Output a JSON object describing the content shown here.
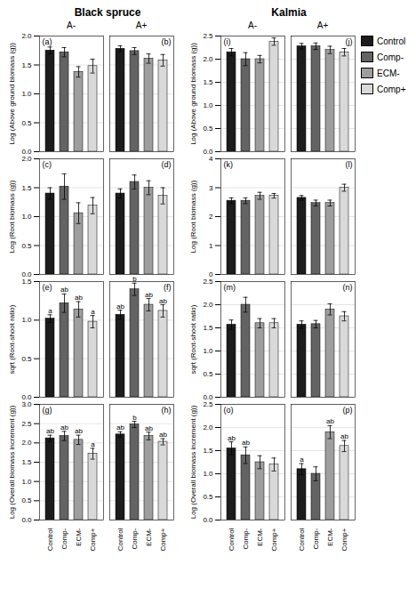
{
  "chart_data": [
    {
      "type": "bar",
      "title": "Black spruce",
      "subtitle": "A-",
      "y_label": "Log (Above ground biomass (g))",
      "categories": [
        "Control",
        "Comp-",
        "ECM-",
        "Comp+"
      ],
      "values": [
        1.75,
        1.72,
        1.38,
        1.48
      ],
      "errors": [
        0.06,
        0.08,
        0.09,
        0.12
      ],
      "colors": [
        "#1c1c1c",
        "#636363",
        "#9e9e9e",
        "#d9d9d9"
      ],
      "ylim": [
        0,
        2
      ],
      "yticks": [
        {
          "value": 0,
          "label": "0.0"
        },
        {
          "value": 0.5,
          "label": "0.5"
        },
        {
          "value": 1,
          "label": "1.0"
        },
        {
          "value": 1.5,
          "label": "1.5"
        },
        {
          "value": 2,
          "label": "2.0"
        }
      ],
      "grid": true,
      "tick_labels": "y",
      "annotations": [
        {
          "text": "(a)"
        }
      ]
    },
    {
      "type": "bar",
      "subtitle": "A+",
      "categories": [
        "Control",
        "Comp-",
        "ECM-",
        "Comp+"
      ],
      "values": [
        1.78,
        1.74,
        1.61,
        1.58
      ],
      "errors": [
        0.05,
        0.06,
        0.08,
        0.1
      ],
      "colors": [
        "#1c1c1c",
        "#636363",
        "#9e9e9e",
        "#d9d9d9"
      ],
      "ylim": [
        0,
        2
      ],
      "yticks": [
        {
          "value": 0,
          "label": "0.0"
        },
        {
          "value": 0.5,
          "label": "0.5"
        },
        {
          "value": 1,
          "label": "1.0"
        },
        {
          "value": 1.5,
          "label": "1.5"
        },
        {
          "value": 2,
          "label": "2.0"
        }
      ],
      "grid": true,
      "tick_labels": false,
      "annotations": [
        {
          "text": "(b)"
        }
      ]
    },
    {
      "type": "bar",
      "title": "Kalmia",
      "subtitle": "A-",
      "y_label": "Log (Above ground biomass (g))",
      "categories": [
        "Control",
        "Comp-",
        "ECM-",
        "Comp+"
      ],
      "values": [
        2.15,
        2.0,
        2.0,
        2.38
      ],
      "errors": [
        0.08,
        0.14,
        0.08,
        0.08
      ],
      "colors": [
        "#1c1c1c",
        "#636363",
        "#9e9e9e",
        "#d9d9d9"
      ],
      "ylim": [
        0,
        2.5
      ],
      "yticks": [
        {
          "value": 0,
          "label": "0.0"
        },
        {
          "value": 0.5,
          "label": "0.5"
        },
        {
          "value": 1,
          "label": "1.0"
        },
        {
          "value": 1.5,
          "label": "1.5"
        },
        {
          "value": 2,
          "label": "2.0"
        },
        {
          "value": 2.5,
          "label": "2.5"
        }
      ],
      "grid": true,
      "tick_labels": "y",
      "annotations": [
        {
          "text": "(i)"
        }
      ]
    },
    {
      "type": "bar",
      "subtitle": "A+",
      "legend": "right",
      "categories": [
        "Control",
        "Comp-",
        "ECM-",
        "Comp+"
      ],
      "values": [
        2.28,
        2.28,
        2.2,
        2.15
      ],
      "errors": [
        0.06,
        0.07,
        0.08,
        0.08
      ],
      "colors": [
        "#1c1c1c",
        "#636363",
        "#9e9e9e",
        "#d9d9d9"
      ],
      "ylim": [
        0,
        2.5
      ],
      "yticks": [
        {
          "value": 0,
          "label": "0.0"
        },
        {
          "value": 0.5,
          "label": "0.5"
        },
        {
          "value": 1,
          "label": "1.0"
        },
        {
          "value": 1.5,
          "label": "1.5"
        },
        {
          "value": 2,
          "label": "2.0"
        },
        {
          "value": 2.5,
          "label": "2.5"
        }
      ],
      "grid": true,
      "tick_labels": false,
      "annotations": [
        {
          "text": "(j)"
        }
      ]
    },
    {
      "type": "bar",
      "y_label": "Log (Root biomass (g))",
      "categories": [
        "Control",
        "Comp-",
        "ECM-",
        "Comp+"
      ],
      "values": [
        1.4,
        1.52,
        1.06,
        1.19
      ],
      "errors": [
        0.1,
        0.22,
        0.18,
        0.14
      ],
      "colors": [
        "#1c1c1c",
        "#636363",
        "#9e9e9e",
        "#d9d9d9"
      ],
      "ylim": [
        0,
        2
      ],
      "yticks": [
        {
          "value": 0,
          "label": "0.0"
        },
        {
          "value": 0.5,
          "label": "0.5"
        },
        {
          "value": 1,
          "label": "1.0"
        },
        {
          "value": 1.5,
          "label": "1.5"
        },
        {
          "value": 2,
          "label": "2.0"
        }
      ],
      "grid": true,
      "tick_labels": "y",
      "annotations": [
        {
          "text": "(c)"
        }
      ]
    },
    {
      "type": "bar",
      "categories": [
        "Control",
        "Comp-",
        "ECM-",
        "Comp+"
      ],
      "values": [
        1.4,
        1.6,
        1.5,
        1.36
      ],
      "errors": [
        0.08,
        0.12,
        0.12,
        0.14
      ],
      "colors": [
        "#1c1c1c",
        "#636363",
        "#9e9e9e",
        "#d9d9d9"
      ],
      "ylim": [
        0,
        2
      ],
      "yticks": [
        {
          "value": 0,
          "label": "0.0"
        },
        {
          "value": 0.5,
          "label": "0.5"
        },
        {
          "value": 1,
          "label": "1.0"
        },
        {
          "value": 1.5,
          "label": "1.5"
        },
        {
          "value": 2,
          "label": "2.0"
        }
      ],
      "grid": true,
      "tick_labels": false,
      "annotations": [
        {
          "text": "(d)"
        }
      ]
    },
    {
      "type": "bar",
      "y_label": "Log (Root biomass (g))",
      "categories": [
        "Control",
        "Comp-",
        "ECM-",
        "Comp+"
      ],
      "values": [
        2.55,
        2.55,
        2.72,
        2.72
      ],
      "errors": [
        0.1,
        0.1,
        0.12,
        0.08
      ],
      "colors": [
        "#1c1c1c",
        "#636363",
        "#9e9e9e",
        "#d9d9d9"
      ],
      "ylim": [
        0,
        4
      ],
      "yticks": [
        0,
        1,
        2,
        3,
        4
      ],
      "grid": true,
      "tick_labels": "y",
      "annotations": [
        {
          "text": "(k)"
        }
      ]
    },
    {
      "type": "bar",
      "categories": [
        "Control",
        "Comp-",
        "ECM-",
        "Comp+"
      ],
      "values": [
        2.65,
        2.47,
        2.47,
        3.0
      ],
      "errors": [
        0.08,
        0.1,
        0.1,
        0.12
      ],
      "colors": [
        "#1c1c1c",
        "#636363",
        "#9e9e9e",
        "#d9d9d9"
      ],
      "ylim": [
        0,
        4
      ],
      "yticks": [
        0,
        1,
        2,
        3,
        4
      ],
      "grid": true,
      "tick_labels": false,
      "annotations": [
        {
          "text": "(l)"
        }
      ]
    },
    {
      "type": "bar",
      "y_label": "sqrt (Root-shoot ratio)",
      "categories": [
        "Control",
        "Comp-",
        "ECM-",
        "Comp+"
      ],
      "values": [
        1.02,
        1.22,
        1.14,
        0.98
      ],
      "errors": [
        0.05,
        0.12,
        0.1,
        0.08
      ],
      "colors": [
        "#1c1c1c",
        "#636363",
        "#9e9e9e",
        "#d9d9d9"
      ],
      "ylim": [
        0,
        1.5
      ],
      "yticks": [
        {
          "value": 0,
          "label": "0.0"
        },
        {
          "value": 0.5,
          "label": "0.5"
        },
        {
          "value": 1,
          "label": "1.0"
        },
        {
          "value": 1.5,
          "label": "1.5"
        }
      ],
      "grid": true,
      "tick_labels": "y",
      "annotations": [
        {
          "text": "(e)"
        },
        {
          "text": "a",
          "x": "Control"
        },
        {
          "text": "ab",
          "x": "Comp-"
        },
        {
          "text": "ab",
          "x": "ECM-"
        },
        {
          "text": "a",
          "x": "Comp+"
        }
      ]
    },
    {
      "type": "bar",
      "categories": [
        "Control",
        "Comp-",
        "ECM-",
        "Comp+"
      ],
      "values": [
        1.07,
        1.4,
        1.2,
        1.12
      ],
      "errors": [
        0.06,
        0.08,
        0.08,
        0.08
      ],
      "colors": [
        "#1c1c1c",
        "#636363",
        "#9e9e9e",
        "#d9d9d9"
      ],
      "ylim": [
        0,
        1.5
      ],
      "yticks": [
        {
          "value": 0,
          "label": "0.0"
        },
        {
          "value": 0.5,
          "label": "0.5"
        },
        {
          "value": 1,
          "label": "1.0"
        },
        {
          "value": 1.5,
          "label": "1.5"
        }
      ],
      "grid": true,
      "tick_labels": false,
      "annotations": [
        {
          "text": "(f)"
        },
        {
          "text": "ab",
          "x": "Control"
        },
        {
          "text": "b",
          "x": "Comp-"
        },
        {
          "text": "ab",
          "x": "ECM-"
        },
        {
          "text": "ab",
          "x": "Comp+"
        }
      ]
    },
    {
      "type": "bar",
      "y_label": "sqrt (Root-shoot ratio)",
      "categories": [
        "Control",
        "Comp-",
        "ECM-",
        "Comp+"
      ],
      "values": [
        1.57,
        2.0,
        1.6,
        1.6
      ],
      "errors": [
        0.1,
        0.16,
        0.1,
        0.1
      ],
      "colors": [
        "#1c1c1c",
        "#636363",
        "#9e9e9e",
        "#d9d9d9"
      ],
      "ylim": [
        0,
        2.5
      ],
      "yticks": [
        {
          "value": 0,
          "label": "0.0"
        },
        {
          "value": 0.5,
          "label": "0.5"
        },
        {
          "value": 1,
          "label": "1.0"
        },
        {
          "value": 1.5,
          "label": "1.5"
        },
        {
          "value": 2,
          "label": "2.0"
        },
        {
          "value": 2.5,
          "label": "2.5"
        }
      ],
      "grid": true,
      "tick_labels": "y",
      "annotations": [
        {
          "text": "(m)"
        }
      ]
    },
    {
      "type": "bar",
      "categories": [
        "Control",
        "Comp-",
        "ECM-",
        "Comp+"
      ],
      "values": [
        1.57,
        1.58,
        1.9,
        1.75
      ],
      "errors": [
        0.08,
        0.08,
        0.12,
        0.1
      ],
      "colors": [
        "#1c1c1c",
        "#636363",
        "#9e9e9e",
        "#d9d9d9"
      ],
      "ylim": [
        0,
        2.5
      ],
      "yticks": [
        {
          "value": 0,
          "label": "0.0"
        },
        {
          "value": 0.5,
          "label": "0.5"
        },
        {
          "value": 1,
          "label": "1.0"
        },
        {
          "value": 1.5,
          "label": "1.5"
        },
        {
          "value": 2,
          "label": "2.0"
        },
        {
          "value": 2.5,
          "label": "2.5"
        }
      ],
      "grid": true,
      "tick_labels": false,
      "annotations": [
        {
          "text": "(n)"
        }
      ]
    },
    {
      "type": "bar",
      "y_label": "Log (Overall biomass increment (g))",
      "categories": [
        "Control",
        "Comp-",
        "ECM-",
        "Comp+"
      ],
      "values": [
        2.12,
        2.18,
        2.08,
        1.72
      ],
      "errors": [
        0.08,
        0.12,
        0.12,
        0.14
      ],
      "colors": [
        "#1c1c1c",
        "#636363",
        "#9e9e9e",
        "#d9d9d9"
      ],
      "ylim": [
        0,
        3
      ],
      "yticks": [
        {
          "value": 0,
          "label": "0.0"
        },
        {
          "value": 0.5,
          "label": "0.5"
        },
        {
          "value": 1,
          "label": "1.0"
        },
        {
          "value": 1.5,
          "label": "1.5"
        },
        {
          "value": 2,
          "label": "2.0"
        },
        {
          "value": 2.5,
          "label": "2.5"
        },
        {
          "value": 3,
          "label": "3.0"
        }
      ],
      "grid": true,
      "annotations": [
        {
          "text": "(g)"
        },
        {
          "text": "ab",
          "x": "Control"
        },
        {
          "text": "ab",
          "x": "Comp-"
        },
        {
          "text": "ab",
          "x": "ECM-"
        },
        {
          "text": "a",
          "x": "Comp+"
        }
      ]
    },
    {
      "type": "bar",
      "categories": [
        "Control",
        "Comp-",
        "ECM-",
        "Comp+"
      ],
      "values": [
        2.22,
        2.48,
        2.18,
        2.03
      ],
      "errors": [
        0.07,
        0.08,
        0.1,
        0.08
      ],
      "colors": [
        "#1c1c1c",
        "#636363",
        "#9e9e9e",
        "#d9d9d9"
      ],
      "ylim": [
        0,
        3
      ],
      "yticks": [
        {
          "value": 0,
          "label": "0.0"
        },
        {
          "value": 0.5,
          "label": "0.5"
        },
        {
          "value": 1,
          "label": "1.0"
        },
        {
          "value": 1.5,
          "label": "1.5"
        },
        {
          "value": 2,
          "label": "2.0"
        },
        {
          "value": 2.5,
          "label": "2.5"
        },
        {
          "value": 3,
          "label": "3.0"
        }
      ],
      "grid": true,
      "tick_labels": "x",
      "annotations": [
        {
          "text": "(h)"
        },
        {
          "text": "ab",
          "x": "Control"
        },
        {
          "text": "b",
          "x": "Comp-"
        },
        {
          "text": "ab",
          "x": "ECM-"
        },
        {
          "text": "ab",
          "x": "Comp+"
        }
      ]
    },
    {
      "type": "bar",
      "y_label": "Log (Overall biomass increment (g))",
      "categories": [
        "Control",
        "Comp-",
        "ECM-",
        "Comp+"
      ],
      "values": [
        1.55,
        1.4,
        1.25,
        1.2
      ],
      "errors": [
        0.14,
        0.18,
        0.14,
        0.14
      ],
      "colors": [
        "#1c1c1c",
        "#636363",
        "#9e9e9e",
        "#d9d9d9"
      ],
      "ylim": [
        0,
        2.5
      ],
      "yticks": [
        {
          "value": 0,
          "label": "0.0"
        },
        {
          "value": 0.5,
          "label": "0.5"
        },
        {
          "value": 1,
          "label": "1.0"
        },
        {
          "value": 1.5,
          "label": "1.5"
        },
        {
          "value": 2,
          "label": "2.0"
        },
        {
          "value": 2.5,
          "label": "2.5"
        }
      ],
      "grid": true,
      "annotations": [
        {
          "text": "(o)"
        },
        {
          "text": "ab",
          "x": "Control"
        },
        {
          "text": "ab",
          "x": "Comp-"
        }
      ]
    },
    {
      "type": "bar",
      "categories": [
        "Control",
        "Comp-",
        "ECM-",
        "Comp+"
      ],
      "values": [
        1.1,
        1.0,
        1.9,
        1.6
      ],
      "errors": [
        0.12,
        0.15,
        0.14,
        0.12
      ],
      "colors": [
        "#1c1c1c",
        "#636363",
        "#9e9e9e",
        "#d9d9d9"
      ],
      "ylim": [
        0,
        2.5
      ],
      "yticks": [
        {
          "value": 0,
          "label": "0.0"
        },
        {
          "value": 0.5,
          "label": "0.5"
        },
        {
          "value": 1,
          "label": "1.0"
        },
        {
          "value": 1.5,
          "label": "1.5"
        },
        {
          "value": 2,
          "label": "2.0"
        },
        {
          "value": 2.5,
          "label": "2.5"
        }
      ],
      "grid": true,
      "tick_labels": "x",
      "annotations": [
        {
          "text": "(p)"
        },
        {
          "text": "a",
          "x": "Control"
        },
        {
          "text": "ab",
          "x": "ECM-"
        },
        {
          "text": "ab",
          "x": "Comp+"
        }
      ]
    }
  ]
}
